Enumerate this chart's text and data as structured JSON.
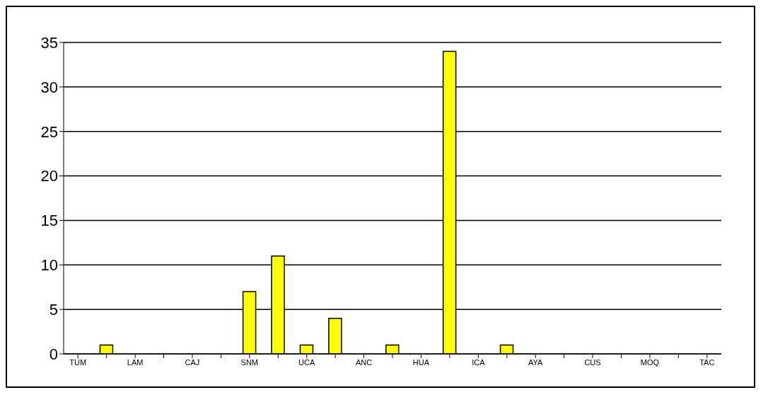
{
  "chart_data": {
    "type": "bar",
    "categories": [
      "TUM",
      null,
      "LAM",
      null,
      "CAJ",
      null,
      "SNM",
      null,
      "UCA",
      null,
      "ANC",
      null,
      "HUA",
      null,
      "ICA",
      null,
      "AYA",
      null,
      "CUS",
      null,
      "MOQ",
      null,
      "TAC"
    ],
    "values": [
      0,
      1,
      0,
      0,
      0,
      0,
      7,
      11,
      1,
      4,
      0,
      1,
      0,
      34,
      0,
      1,
      0,
      0,
      0,
      0,
      0,
      0,
      0
    ],
    "color": "#ffff00",
    "ylim": [
      0,
      35
    ],
    "yticks": [
      0,
      5,
      10,
      15,
      20,
      25,
      30,
      35
    ],
    "grid": "y"
  }
}
